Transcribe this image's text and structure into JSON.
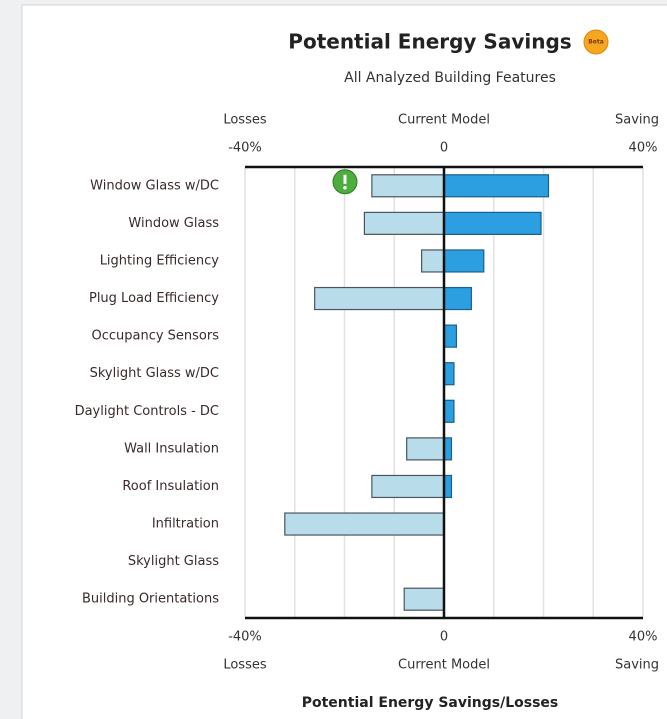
{
  "chart_data": {
    "type": "diverging-bar",
    "title": "Potential Energy Savings",
    "badge": "Beta",
    "subtitle": "All Analyzed Building Features",
    "center_label": "Current Model",
    "xlabel": "Potential Energy Savings/Losses",
    "categories": [
      "Window Glass w/DC",
      "Window Glass",
      "Lighting Efficiency",
      "Plug Load Efficiency",
      "Occupancy Sensors",
      "Skylight Glass w/DC",
      "Daylight Controls - DC",
      "Wall Insulation",
      "Roof Insulation",
      "Infiltration",
      "Skylight Glass",
      "Building Orientations"
    ],
    "series": [
      {
        "name": "Losses",
        "color": "#b8dcea",
        "values": [
          -14.5,
          -16,
          -4.5,
          -26,
          0,
          0,
          0,
          -7.5,
          -14.5,
          -32,
          0,
          -8
        ]
      },
      {
        "name": "Saving",
        "color": "#2b9fe0",
        "values": [
          21,
          19.5,
          8,
          5.5,
          2.5,
          2,
          2,
          1.5,
          1.5,
          0,
          0,
          0
        ]
      }
    ],
    "xlim": [
      -40,
      40
    ],
    "xticks": [
      {
        "value": -40,
        "label": "-40%"
      },
      0,
      {
        "value": 40,
        "label": "40%"
      }
    ],
    "gridlines": [
      -40,
      -30,
      -20,
      -10,
      0,
      10,
      20,
      30,
      40
    ],
    "grid": true
  }
}
